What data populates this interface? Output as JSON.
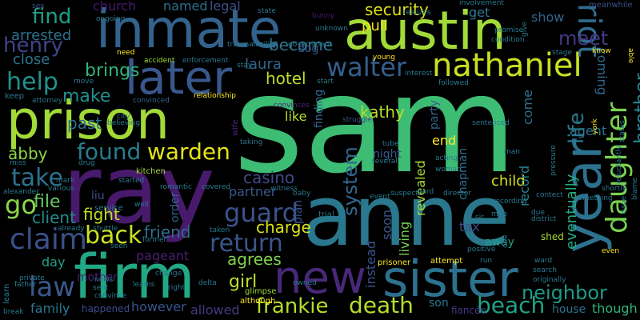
{
  "words": [
    {
      "text": "sam",
      "color": "#3dbc74"
    },
    {
      "text": "ray",
      "color": "#481a6c"
    },
    {
      "text": "anne",
      "color": "#2a788e"
    },
    {
      "text": "inmate",
      "color": "#33638d"
    },
    {
      "text": "austin",
      "color": "#a2da37"
    },
    {
      "text": "prison",
      "color": "#a2da37"
    },
    {
      "text": "firm",
      "color": "#22a884"
    },
    {
      "text": "sister",
      "color": "#2c718e"
    },
    {
      "text": "new",
      "color": "#482878"
    },
    {
      "text": "later",
      "color": "#38588c"
    },
    {
      "text": "year",
      "color": "#2c728e"
    },
    {
      "text": "nathaniel",
      "color": "#c8e020"
    },
    {
      "text": "walter",
      "color": "#355f8d"
    },
    {
      "text": "riot",
      "color": "#2f6c8e"
    },
    {
      "text": "daughter",
      "color": "#7ad151"
    },
    {
      "text": "guard",
      "color": "#3a548c"
    },
    {
      "text": "return",
      "color": "#39568c"
    },
    {
      "text": "claim",
      "color": "#3b518b"
    },
    {
      "text": "law",
      "color": "#38588c"
    },
    {
      "text": "death",
      "color": "#b5de2b"
    },
    {
      "text": "beach",
      "color": "#20a386"
    },
    {
      "text": "frankie",
      "color": "#b5de2b"
    },
    {
      "text": "back",
      "color": "#cae11f"
    },
    {
      "text": "warden",
      "color": "#e5e419"
    },
    {
      "text": "found",
      "color": "#287d8e"
    },
    {
      "text": "go",
      "color": "#8bd646"
    },
    {
      "text": "help",
      "color": "#20928c"
    },
    {
      "text": "take",
      "color": "#2d718e"
    },
    {
      "text": "henry",
      "color": "#404387"
    },
    {
      "text": "find",
      "color": "#1f9e89"
    },
    {
      "text": "neighbor",
      "color": "#1e9b8a"
    },
    {
      "text": "meet",
      "color": "#443983"
    },
    {
      "text": "security",
      "color": "#dde318"
    },
    {
      "text": "brother",
      "color": "#26828e"
    },
    {
      "text": "system",
      "color": "#31688e"
    },
    {
      "text": "life",
      "color": "#2a788e"
    },
    {
      "text": "girl",
      "color": "#c2df23"
    },
    {
      "text": "agrees",
      "color": "#7fd34e"
    },
    {
      "text": "charge",
      "color": "#d8e219"
    },
    {
      "text": "friend",
      "color": "#2e6f8e"
    },
    {
      "text": "fight",
      "color": "#c2df23"
    },
    {
      "text": "file",
      "color": "#63cb5f"
    },
    {
      "text": "client",
      "color": "#238a8d"
    },
    {
      "text": "brings",
      "color": "#31b57b"
    },
    {
      "text": "make",
      "color": "#21908c"
    },
    {
      "text": "arrested",
      "color": "#2d718e"
    },
    {
      "text": "close",
      "color": "#2c728e"
    },
    {
      "text": "become",
      "color": "#2b758e"
    },
    {
      "text": "hotel",
      "color": "#bddf26"
    },
    {
      "text": "laura",
      "color": "#32658e"
    },
    {
      "text": "kathy",
      "color": "#b5de2b"
    },
    {
      "text": "abby",
      "color": "#8bd646"
    },
    {
      "text": "past",
      "color": "#2d708e"
    },
    {
      "text": "casino",
      "color": "#3e4a89"
    },
    {
      "text": "partner",
      "color": "#39558c"
    },
    {
      "text": "child",
      "color": "#d8e219"
    },
    {
      "text": "eventually",
      "color": "#25ac82"
    },
    {
      "text": "record",
      "color": "#25838e"
    },
    {
      "text": "come",
      "color": "#2b748e"
    },
    {
      "text": "coming",
      "color": "#31688e"
    },
    {
      "text": "agent",
      "color": "#2a768e"
    },
    {
      "text": "revealed",
      "color": "#a8db34"
    },
    {
      "text": "instead",
      "color": "#3b528b"
    },
    {
      "text": "soon",
      "color": "#3b528b"
    },
    {
      "text": "living",
      "color": "#73d056"
    },
    {
      "text": "tax",
      "color": "#3e4a89"
    },
    {
      "text": "away",
      "color": "#20a386"
    },
    {
      "text": "though",
      "color": "#31b57b"
    },
    {
      "text": "house",
      "color": "#2c728e"
    },
    {
      "text": "however",
      "color": "#3a548c"
    },
    {
      "text": "allowed",
      "color": "#443a83"
    },
    {
      "text": "family",
      "color": "#2a788e"
    },
    {
      "text": "happened",
      "color": "#3e4989"
    },
    {
      "text": "pageant",
      "color": "#481f70"
    },
    {
      "text": "day",
      "color": "#1fa088"
    },
    {
      "text": "liu",
      "color": "#404688"
    },
    {
      "text": "plan",
      "color": "#3a548c"
    },
    {
      "text": "order",
      "color": "#33638d"
    },
    {
      "text": "pull",
      "color": "#efe51c"
    },
    {
      "text": "dog",
      "color": "#38588c"
    },
    {
      "text": "get",
      "color": "#2a788e"
    },
    {
      "text": "show",
      "color": "#32658e"
    },
    {
      "text": "legal",
      "color": "#3b518b"
    },
    {
      "text": "named",
      "color": "#2c728e"
    },
    {
      "text": "church",
      "color": "#481a6c"
    },
    {
      "text": "end",
      "color": "#fde725"
    },
    {
      "text": "chapman",
      "color": "#2e6d8e"
    },
    {
      "text": "son",
      "color": "#2a778e"
    },
    {
      "text": "like",
      "color": "#b8de29"
    },
    {
      "text": "finding",
      "color": "#31688e"
    },
    {
      "text": "party",
      "color": "#355f8d"
    },
    {
      "text": "night",
      "color": "#38588c"
    },
    {
      "text": "mother",
      "color": "#482173"
    },
    {
      "text": "fiancée",
      "color": "#453781"
    },
    {
      "text": "shed",
      "color": "#a8db34"
    },
    {
      "text": "trial",
      "color": "#2a778e"
    },
    {
      "text": "attempt",
      "color": "#fde725"
    },
    {
      "text": "prisoner",
      "color": "#fde725"
    },
    {
      "text": "glimpse",
      "color": "#a2da37"
    },
    {
      "text": "although",
      "color": "#fde725"
    },
    {
      "text": "kitchen",
      "color": "#a8db34"
    },
    {
      "text": "wife",
      "color": "#482878"
    },
    {
      "text": "sex",
      "color": "#3b528b"
    },
    {
      "text": "meanwhile",
      "color": "#3b528b"
    },
    {
      "text": "enforcement",
      "color": "#2a788e"
    },
    {
      "text": "convinced",
      "color": "#33638d"
    },
    {
      "text": "relationship",
      "color": "#fde725"
    },
    {
      "text": "convinces",
      "color": "#482475"
    },
    {
      "text": "struggle",
      "color": "#3b528b"
    },
    {
      "text": "interest",
      "color": "#2a788e"
    },
    {
      "text": "followed",
      "color": "#2a788e"
    },
    {
      "text": "young",
      "color": "#fde725"
    },
    {
      "text": "sentenced",
      "color": "#2a788e"
    },
    {
      "text": "realizes",
      "color": "#2a788e"
    },
    {
      "text": "bunny",
      "color": "#481a6c"
    },
    {
      "text": "involvement",
      "color": "#2a788e"
    },
    {
      "text": "condition",
      "color": "#2a788e"
    },
    {
      "text": "promise",
      "color": "#2a788e"
    },
    {
      "text": "stage",
      "color": "#2a788e"
    },
    {
      "text": "know",
      "color": "#fde725"
    },
    {
      "text": "able",
      "color": "#fde725"
    },
    {
      "text": "unknown",
      "color": "#2a788e"
    },
    {
      "text": "government",
      "color": "#2a788e"
    },
    {
      "text": "facility",
      "color": "#2a788e"
    },
    {
      "text": "trauma",
      "color": "#2a788e"
    },
    {
      "text": "state",
      "color": "#2a788e"
    },
    {
      "text": "stay",
      "color": "#2a788e"
    },
    {
      "text": "start",
      "color": "#2a788e"
    },
    {
      "text": "accident",
      "color": "#a2da37"
    },
    {
      "text": "move",
      "color": "#2a788e"
    },
    {
      "text": "keep",
      "color": "#2a788e"
    },
    {
      "text": "attorney",
      "color": "#2a788e"
    },
    {
      "text": "need",
      "color": "#fde725"
    },
    {
      "text": "ongoing",
      "color": "#2a788e"
    },
    {
      "text": "believing",
      "color": "#2a788e"
    },
    {
      "text": "city",
      "color": "#2a788e"
    },
    {
      "text": "taking",
      "color": "#2a788e"
    },
    {
      "text": "tube",
      "color": "#2a788e"
    },
    {
      "text": "several",
      "color": "#2a788e"
    },
    {
      "text": "acting",
      "color": "#2a788e"
    },
    {
      "text": "woman",
      "color": "#2a788e"
    },
    {
      "text": "york",
      "color": "#fde725"
    },
    {
      "text": "status",
      "color": "#2a788e"
    },
    {
      "text": "pressure",
      "color": "#2a788e"
    },
    {
      "text": "reluctantly",
      "color": "#2a788e"
    },
    {
      "text": "blame",
      "color": "#2a788e"
    },
    {
      "text": "shortly",
      "color": "#2a788e"
    },
    {
      "text": "something",
      "color": "#2a788e"
    },
    {
      "text": "mob",
      "color": "#2a788e"
    },
    {
      "text": "district",
      "color": "#2a788e"
    },
    {
      "text": "recording",
      "color": "#2a788e"
    },
    {
      "text": "director",
      "color": "#2a788e"
    },
    {
      "text": "yard",
      "color": "#2a788e"
    },
    {
      "text": "suspect",
      "color": "#2a788e"
    },
    {
      "text": "baby",
      "color": "#2a788e"
    },
    {
      "text": "drug",
      "color": "#2a788e"
    },
    {
      "text": "miss",
      "color": "#2a788e"
    },
    {
      "text": "alexander",
      "color": "#2a788e"
    },
    {
      "text": "various",
      "color": "#2a788e"
    },
    {
      "text": "romantic",
      "color": "#2a788e"
    },
    {
      "text": "covered",
      "color": "#2a788e"
    },
    {
      "text": "started",
      "color": "#2a788e"
    },
    {
      "text": "witness",
      "color": "#2a788e"
    },
    {
      "text": "service",
      "color": "#2a788e"
    },
    {
      "text": "well",
      "color": "#2a788e"
    },
    {
      "text": "former",
      "color": "#2a788e"
    },
    {
      "text": "seen",
      "color": "#2a788e"
    },
    {
      "text": "change",
      "color": "#2a788e"
    },
    {
      "text": "delta",
      "color": "#2a788e"
    },
    {
      "text": "taken",
      "color": "#2a788e"
    },
    {
      "text": "owned",
      "color": "#2a788e"
    },
    {
      "text": "private",
      "color": "#2a788e"
    },
    {
      "text": "father",
      "color": "#2a788e"
    },
    {
      "text": "news",
      "color": "#2a788e"
    },
    {
      "text": "sent",
      "color": "#2a788e"
    },
    {
      "text": "convince",
      "color": "#2a788e"
    },
    {
      "text": "learns",
      "color": "#2a788e"
    },
    {
      "text": "right",
      "color": "#2a788e"
    },
    {
      "text": "break",
      "color": "#2a788e"
    },
    {
      "text": "learn",
      "color": "#2a788e"
    },
    {
      "text": "shuttle",
      "color": "#2a788e"
    },
    {
      "text": "already",
      "color": "#2a788e"
    },
    {
      "text": "sir",
      "color": "#2a788e"
    },
    {
      "text": "one",
      "color": "#2a788e"
    },
    {
      "text": "due",
      "color": "#2a788e"
    },
    {
      "text": "positive",
      "color": "#2a788e"
    },
    {
      "text": "run",
      "color": "#2a788e"
    },
    {
      "text": "ward",
      "color": "#2a788e"
    },
    {
      "text": "originally",
      "color": "#2a788e"
    },
    {
      "text": "search",
      "color": "#2a788e"
    },
    {
      "text": "even",
      "color": "#fde725"
    },
    {
      "text": "issue",
      "color": "#2a788e"
    },
    {
      "text": "give",
      "color": "#2a788e"
    },
    {
      "text": "contect",
      "color": "#2a788e"
    },
    {
      "text": "event",
      "color": "#2a788e"
    },
    {
      "text": "eric",
      "color": "#2a788e"
    },
    {
      "text": "mark",
      "color": "#2a788e"
    },
    {
      "text": "man",
      "color": "#2a788e"
    },
    {
      "text": "garage",
      "color": "#2a788e"
    },
    {
      "text": "sheriff",
      "color": "#2a788e"
    }
  ]
}
